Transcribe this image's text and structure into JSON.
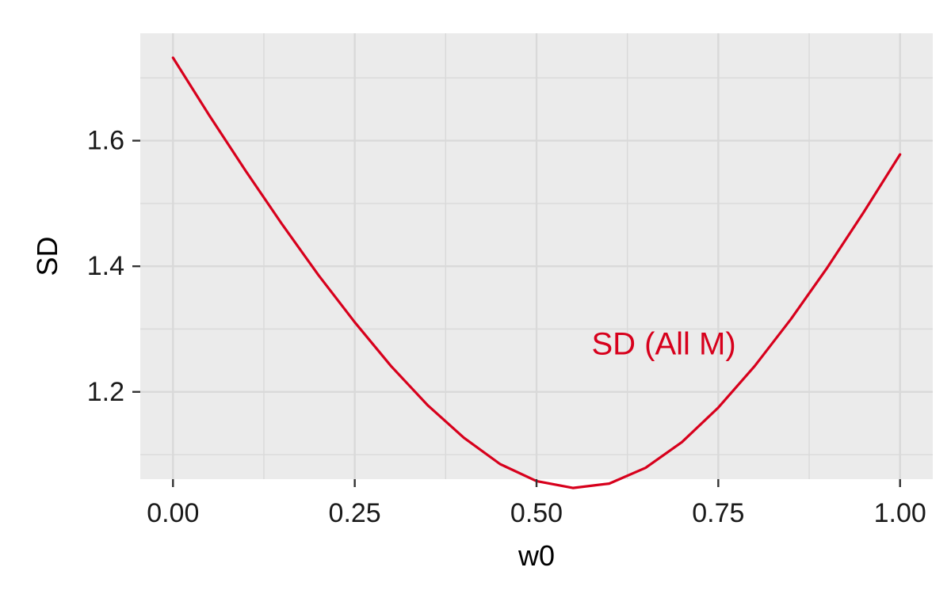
{
  "chart_data": {
    "type": "line",
    "title": "",
    "xlabel": "w0",
    "ylabel": "SD",
    "xlim": [
      -0.045,
      1.045
    ],
    "ylim": [
      1.061,
      1.771
    ],
    "x_ticks": [
      0.0,
      0.25,
      0.5,
      0.75,
      1.0
    ],
    "x_tick_labels": [
      "0.00",
      "0.25",
      "0.50",
      "0.75",
      "1.00"
    ],
    "y_ticks": [
      1.2,
      1.4,
      1.6
    ],
    "y_tick_labels": [
      "1.2",
      "1.4",
      "1.6"
    ],
    "grid": true,
    "legend": "none",
    "background": "#EBEBEB",
    "grid_color": "#D9D9D9",
    "series": [
      {
        "color": "#D7001C",
        "x": [
          0.0,
          0.05,
          0.1,
          0.15,
          0.2,
          0.25,
          0.3,
          0.35,
          0.4,
          0.45,
          0.5,
          0.55,
          0.6,
          0.65,
          0.7,
          0.75,
          0.8,
          0.85,
          0.9,
          0.95,
          1.0
        ],
        "y": [
          1.732,
          1.64,
          1.552,
          1.467,
          1.386,
          1.311,
          1.241,
          1.179,
          1.127,
          1.085,
          1.058,
          1.047,
          1.054,
          1.079,
          1.12,
          1.175,
          1.241,
          1.316,
          1.398,
          1.486,
          1.578
        ]
      }
    ],
    "annotations": [
      {
        "text": "SD (All M)",
        "x": 0.675,
        "y": 1.276,
        "color": "#D7001C"
      }
    ]
  }
}
